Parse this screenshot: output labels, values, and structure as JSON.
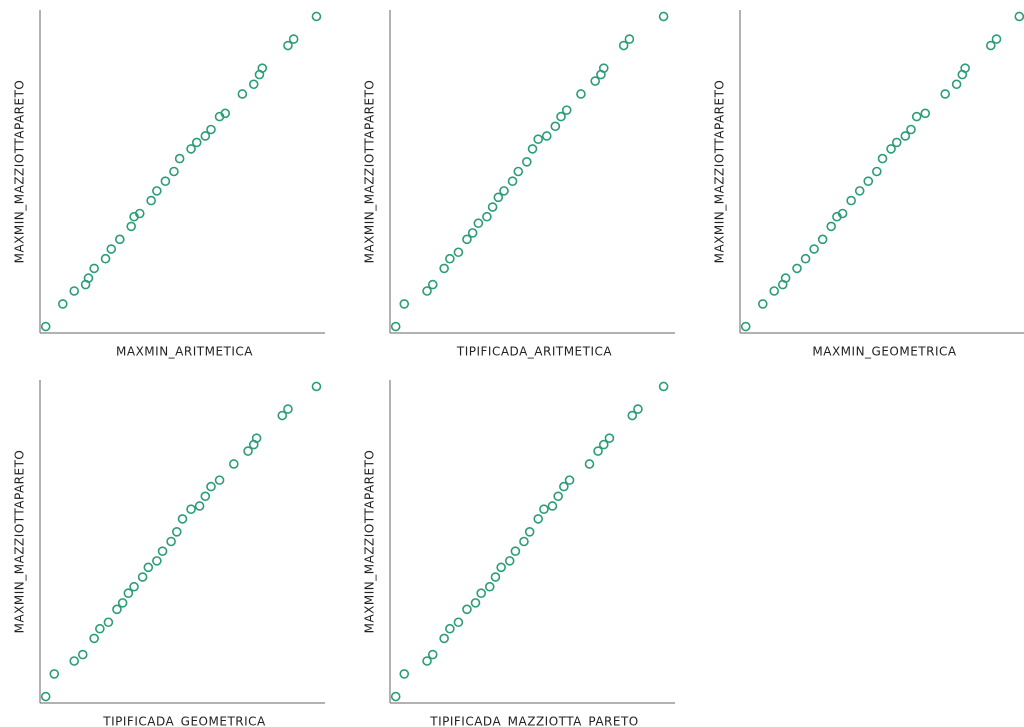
{
  "chart_data": [
    {
      "type": "scatter",
      "x_label": "MAXMIN_ARITMETICA",
      "y_label": "MAXMIN_MAZZIOTTAPARETO",
      "color": "#2a9d76",
      "xlim": [
        0,
        1
      ],
      "ylim": [
        0,
        1
      ],
      "x": [
        0.02,
        0.08,
        0.12,
        0.16,
        0.17,
        0.19,
        0.23,
        0.25,
        0.28,
        0.32,
        0.33,
        0.35,
        0.39,
        0.41,
        0.44,
        0.47,
        0.49,
        0.53,
        0.55,
        0.58,
        0.6,
        0.63,
        0.65,
        0.71,
        0.75,
        0.77,
        0.78,
        0.87,
        0.89,
        0.97
      ],
      "y": [
        0.02,
        0.09,
        0.13,
        0.15,
        0.17,
        0.2,
        0.23,
        0.26,
        0.29,
        0.33,
        0.36,
        0.37,
        0.41,
        0.44,
        0.47,
        0.5,
        0.54,
        0.57,
        0.59,
        0.61,
        0.63,
        0.67,
        0.68,
        0.74,
        0.77,
        0.8,
        0.82,
        0.89,
        0.91,
        0.98
      ]
    },
    {
      "type": "scatter",
      "x_label": "TIPIFICADA_ARITMETICA",
      "y_label": "MAXMIN_MAZZIOTTAPARETO",
      "color": "#2a9d76",
      "xlim": [
        0,
        1
      ],
      "ylim": [
        0,
        1
      ],
      "x": [
        0.02,
        0.05,
        0.13,
        0.15,
        0.19,
        0.21,
        0.24,
        0.27,
        0.29,
        0.31,
        0.34,
        0.36,
        0.38,
        0.4,
        0.43,
        0.45,
        0.48,
        0.5,
        0.52,
        0.55,
        0.58,
        0.6,
        0.62,
        0.67,
        0.72,
        0.74,
        0.75,
        0.82,
        0.84,
        0.96
      ],
      "y": [
        0.02,
        0.09,
        0.13,
        0.15,
        0.2,
        0.23,
        0.25,
        0.29,
        0.31,
        0.34,
        0.36,
        0.39,
        0.42,
        0.44,
        0.47,
        0.5,
        0.53,
        0.57,
        0.6,
        0.61,
        0.64,
        0.67,
        0.69,
        0.74,
        0.78,
        0.8,
        0.82,
        0.89,
        0.91,
        0.98
      ]
    },
    {
      "type": "scatter",
      "x_label": "MAXMIN_GEOMETRICA",
      "y_label": "MAXMIN_MAZZIOTTAPARETO",
      "color": "#2a9d76",
      "xlim": [
        0,
        1
      ],
      "ylim": [
        0,
        1
      ],
      "x": [
        0.02,
        0.08,
        0.12,
        0.15,
        0.16,
        0.2,
        0.23,
        0.26,
        0.29,
        0.32,
        0.34,
        0.36,
        0.39,
        0.42,
        0.45,
        0.48,
        0.5,
        0.53,
        0.55,
        0.58,
        0.6,
        0.62,
        0.65,
        0.72,
        0.76,
        0.78,
        0.79,
        0.88,
        0.9,
        0.98
      ],
      "y": [
        0.02,
        0.09,
        0.13,
        0.15,
        0.17,
        0.2,
        0.23,
        0.26,
        0.29,
        0.33,
        0.36,
        0.37,
        0.41,
        0.44,
        0.47,
        0.5,
        0.54,
        0.57,
        0.59,
        0.61,
        0.63,
        0.67,
        0.68,
        0.74,
        0.77,
        0.8,
        0.82,
        0.89,
        0.91,
        0.98
      ]
    },
    {
      "type": "scatter",
      "x_label": "TIPIFICADA_GEOMETRICA",
      "y_label": "MAXMIN_MAZZIOTTAPARETO",
      "color": "#2a9d76",
      "xlim": [
        0,
        1
      ],
      "ylim": [
        0,
        1
      ],
      "x": [
        0.02,
        0.05,
        0.12,
        0.15,
        0.19,
        0.21,
        0.24,
        0.27,
        0.29,
        0.31,
        0.33,
        0.36,
        0.38,
        0.41,
        0.43,
        0.46,
        0.48,
        0.5,
        0.53,
        0.56,
        0.58,
        0.6,
        0.63,
        0.68,
        0.73,
        0.75,
        0.76,
        0.85,
        0.87,
        0.97
      ],
      "y": [
        0.02,
        0.09,
        0.13,
        0.15,
        0.2,
        0.23,
        0.25,
        0.29,
        0.31,
        0.34,
        0.36,
        0.39,
        0.42,
        0.44,
        0.47,
        0.5,
        0.53,
        0.57,
        0.6,
        0.61,
        0.64,
        0.67,
        0.69,
        0.74,
        0.78,
        0.8,
        0.82,
        0.89,
        0.91,
        0.98
      ]
    },
    {
      "type": "scatter",
      "x_label": "TIPIFICADA_MAZZIOTTA_PARETO",
      "y_label": "MAXMIN_MAZZIOTTAPARETO",
      "color": "#2a9d76",
      "xlim": [
        0,
        1
      ],
      "ylim": [
        0,
        1
      ],
      "x": [
        0.02,
        0.05,
        0.13,
        0.15,
        0.19,
        0.21,
        0.24,
        0.27,
        0.3,
        0.32,
        0.35,
        0.37,
        0.39,
        0.42,
        0.44,
        0.47,
        0.49,
        0.52,
        0.54,
        0.57,
        0.59,
        0.61,
        0.63,
        0.7,
        0.73,
        0.75,
        0.77,
        0.85,
        0.87,
        0.96
      ],
      "y": [
        0.02,
        0.09,
        0.13,
        0.15,
        0.2,
        0.23,
        0.25,
        0.29,
        0.31,
        0.34,
        0.36,
        0.39,
        0.42,
        0.44,
        0.47,
        0.5,
        0.53,
        0.57,
        0.6,
        0.61,
        0.64,
        0.67,
        0.69,
        0.74,
        0.78,
        0.8,
        0.82,
        0.89,
        0.91,
        0.98
      ]
    }
  ]
}
